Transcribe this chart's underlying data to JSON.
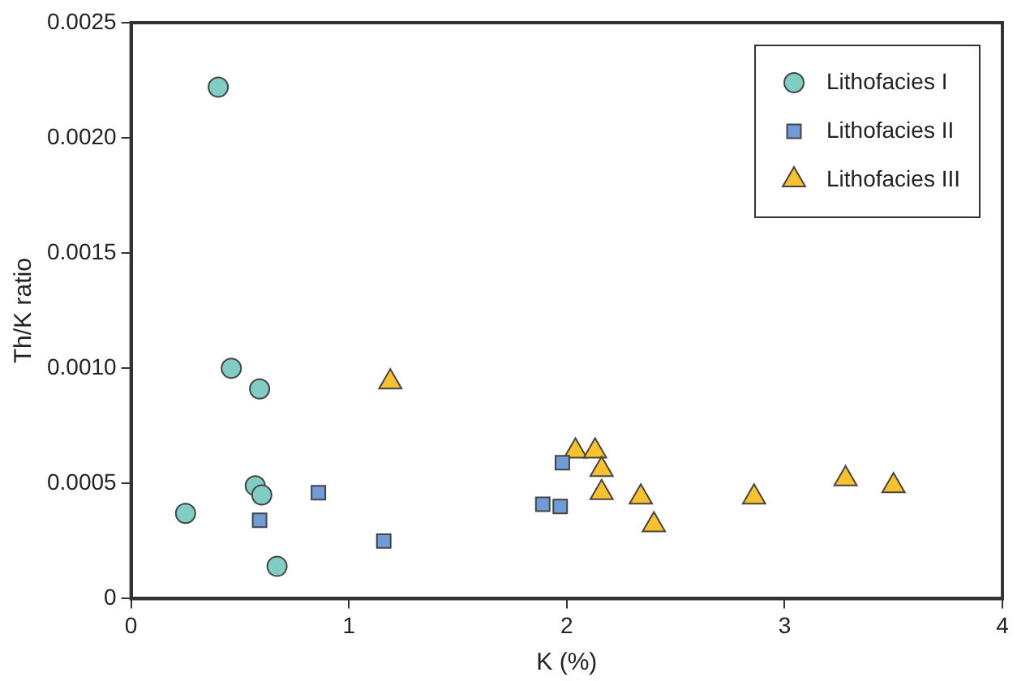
{
  "chart_data": {
    "type": "scatter",
    "xlabel": "K (%)",
    "ylabel": "Th/K ratio",
    "xlim": [
      0,
      4
    ],
    "xticks": [
      0,
      1,
      2,
      3,
      4
    ],
    "ylim": [
      0,
      0.0025
    ],
    "yticks": [
      {
        "value": 0,
        "label": "0"
      },
      {
        "value": 0.0005,
        "label": "0.0005"
      },
      {
        "value": 0.001,
        "label": "0.0010"
      },
      {
        "value": 0.0015,
        "label": "0.0015"
      },
      {
        "value": 0.002,
        "label": "0.0020"
      },
      {
        "value": 0.0025,
        "label": "0.0025"
      }
    ],
    "grid": false,
    "legend": "top right",
    "series": [
      {
        "name": "Lithofacies I",
        "color": "#7fcdc4",
        "marker": "circle",
        "x": [
          0.4,
          0.46,
          0.59,
          0.25,
          0.57,
          0.6,
          0.67
        ],
        "values": [
          0.00222,
          0.001,
          0.00091,
          0.00037,
          0.00049,
          0.00045,
          0.00014
        ]
      },
      {
        "name": "Lithofacies II",
        "color": "#6f9bd8",
        "marker": "square",
        "x": [
          0.86,
          0.59,
          1.16,
          1.89,
          1.97,
          1.98
        ],
        "values": [
          0.00046,
          0.00034,
          0.00025,
          0.00041,
          0.0004,
          0.00059
        ]
      },
      {
        "name": "Lithofacies III",
        "color": "#f9c12e",
        "marker": "triangle",
        "x": [
          1.19,
          2.04,
          2.13,
          2.16,
          2.16,
          2.34,
          2.4,
          2.86,
          3.28,
          3.5
        ],
        "values": [
          0.00094,
          0.00064,
          0.00064,
          0.00056,
          0.00046,
          0.00044,
          0.00032,
          0.00044,
          0.00052,
          0.00049
        ]
      }
    ]
  }
}
